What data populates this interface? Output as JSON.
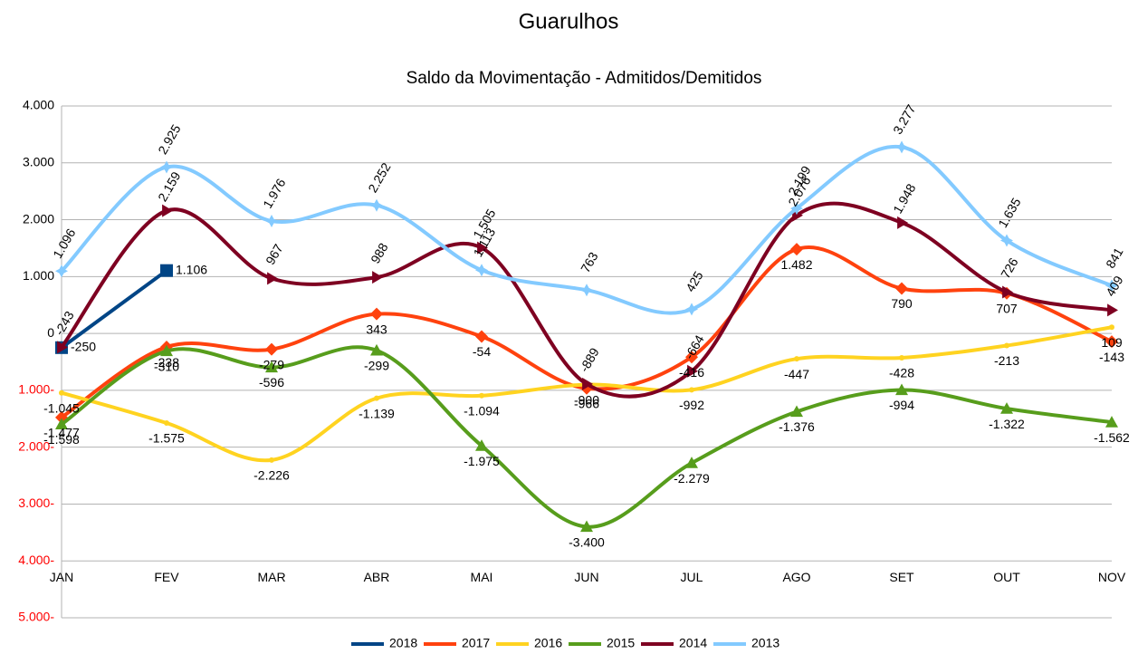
{
  "chart_data": {
    "type": "line",
    "title": "Guarulhos",
    "subtitle": "Saldo da Movimentação - Admitidos/Demitidos",
    "categories": [
      "JAN",
      "FEV",
      "MAR",
      "ABR",
      "MAI",
      "JUN",
      "JUL",
      "AGO",
      "SET",
      "OUT",
      "NOV"
    ],
    "ylim": [
      -5000,
      4000
    ],
    "yticks": [
      {
        "value": 4000,
        "label": "4.000"
      },
      {
        "value": 3000,
        "label": "3.000"
      },
      {
        "value": 2000,
        "label": "2.000"
      },
      {
        "value": 1000,
        "label": "1.000"
      },
      0,
      {
        "value": -1000,
        "label": "1.000-"
      },
      {
        "value": -2000,
        "label": "2.000-"
      },
      {
        "value": -3000,
        "label": "3.000-"
      },
      {
        "value": -4000,
        "label": "4.000-"
      },
      {
        "value": -5000,
        "label": "5.000-"
      }
    ],
    "grid": true,
    "series": [
      {
        "name": "2018",
        "color": "#004586",
        "values": [
          -250,
          1106,
          null,
          null,
          null,
          null,
          null,
          null,
          null,
          null,
          null
        ],
        "value_labels": [
          "-250",
          "1.106",
          null,
          null,
          null,
          null,
          null,
          null,
          null,
          null,
          null
        ]
      },
      {
        "name": "2017",
        "color": "#ff420e",
        "values": [
          -1477,
          -238,
          -279,
          343,
          -54,
          -966,
          -416,
          1482,
          790,
          707,
          -143
        ],
        "value_labels": [
          "-1.477",
          "-238",
          "-279",
          "343",
          "-54",
          "-966",
          "-416",
          "1.482",
          "790",
          "707",
          "-143"
        ]
      },
      {
        "name": "2016",
        "color": "#ffd320",
        "values": [
          -1045,
          -1575,
          -2226,
          -1139,
          -1094,
          -900,
          -992,
          -447,
          -428,
          -213,
          109
        ],
        "value_labels": [
          "-1.045",
          "-1.575",
          "-2.226",
          "-1.139",
          "-1.094",
          "-900",
          "-992",
          "-447",
          "-428",
          "-213",
          "109"
        ]
      },
      {
        "name": "2015",
        "color": "#579d1c",
        "values": [
          -1598,
          -310,
          -596,
          -299,
          -1975,
          -3400,
          -2279,
          -1376,
          -994,
          -1322,
          -1562
        ],
        "value_labels": [
          "-1.598",
          "-310",
          "-596",
          "-299",
          "-1.975",
          "-3.400",
          "-2.279",
          "-1.376",
          "-994",
          "-1.322",
          "-1.562"
        ]
      },
      {
        "name": "2014",
        "color": "#7e0021",
        "values": [
          -243,
          2159,
          967,
          988,
          1505,
          -889,
          -664,
          2076,
          1948,
          726,
          409
        ],
        "value_labels": [
          "-243",
          "2.159",
          "967",
          "988",
          "1.505",
          "-889",
          "-664",
          "2.076",
          "1.948",
          "726",
          "409"
        ]
      },
      {
        "name": "2013",
        "color": "#83caff",
        "values": [
          1096,
          2925,
          1976,
          2252,
          1113,
          763,
          425,
          2199,
          3277,
          1635,
          841
        ],
        "value_labels": [
          "1.096",
          "2.925",
          "1.976",
          "2.252",
          "1.113",
          "763",
          "425",
          "2.199",
          "3.277",
          "1.635",
          "841"
        ]
      }
    ]
  }
}
